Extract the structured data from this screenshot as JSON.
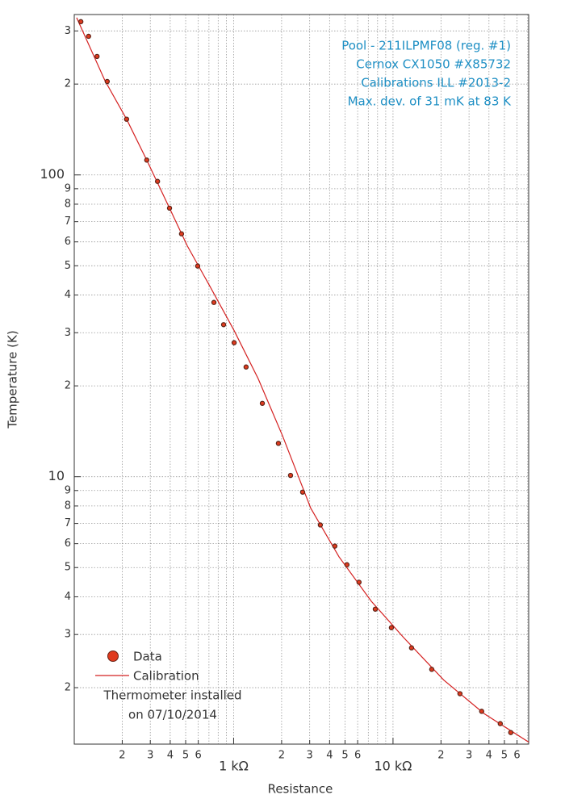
{
  "chart_data": {
    "type": "scatter",
    "xlabel": "Resistance",
    "ylabel": "Temperature (K)",
    "annotations": [
      "Pool - 211ILPMF08 (reg. #1)",
      "Cernox CX1050 #X85732",
      "Calibrations ILL #2013-2",
      "Max. dev. of 31 mK at 83 K"
    ],
    "legend_note": [
      "Thermometer installed",
      "on 07/10/2014"
    ],
    "log_x": true,
    "log_y": true,
    "grid": true,
    "legend": "lower left",
    "xlim": [
      100,
      71000
    ],
    "ylim": [
      1.3,
      340
    ],
    "xticks": [
      {
        "value": 200,
        "label": "2"
      },
      {
        "value": 300,
        "label": "3"
      },
      {
        "value": 400,
        "label": "4"
      },
      {
        "value": 500,
        "label": "5"
      },
      {
        "value": 600,
        "label": "6"
      },
      {
        "value": 1000,
        "label": "1 kΩ"
      },
      {
        "value": 2000,
        "label": "2"
      },
      {
        "value": 3000,
        "label": "3"
      },
      {
        "value": 4000,
        "label": "4"
      },
      {
        "value": 5000,
        "label": "5"
      },
      {
        "value": 6000,
        "label": "6"
      },
      {
        "value": 10000,
        "label": "10 kΩ"
      },
      {
        "value": 20000,
        "label": "2"
      },
      {
        "value": 30000,
        "label": "3"
      },
      {
        "value": 40000,
        "label": "4"
      },
      {
        "value": 50000,
        "label": "5"
      },
      {
        "value": 60000,
        "label": "6"
      }
    ],
    "xgrid_minor": [
      700,
      800,
      900,
      7000,
      8000,
      9000,
      70000
    ],
    "yticks": [
      2,
      3,
      4,
      5,
      6,
      7,
      8,
      9,
      10,
      {
        "value": 20,
        "label": "2"
      },
      {
        "value": 30,
        "label": "3"
      },
      {
        "value": 40,
        "label": "4"
      },
      {
        "value": 50,
        "label": "5"
      },
      {
        "value": 60,
        "label": "6"
      },
      {
        "value": 70,
        "label": "7"
      },
      {
        "value": 80,
        "label": "8"
      },
      {
        "value": 90,
        "label": "9"
      },
      100,
      {
        "value": 200,
        "label": "2"
      },
      {
        "value": 300,
        "label": "3"
      }
    ],
    "series": [
      {
        "name": "Data",
        "color": "#e03a1e",
        "x": [
          110,
          123,
          139,
          161,
          213,
          285,
          333,
          396,
          471,
          595,
          752,
          865,
          1007,
          1197,
          1514,
          1910,
          2275,
          2710,
          3500,
          4315,
          5140,
          6120,
          7740,
          9770,
          13070,
          17500,
          26300,
          36000,
          47100,
          54800
        ],
        "values": [
          322,
          288,
          247,
          204,
          153,
          112,
          95.2,
          77.6,
          63.8,
          49.9,
          37.8,
          31.9,
          27.8,
          23.1,
          17.5,
          12.9,
          10.1,
          8.89,
          6.92,
          5.89,
          5.11,
          4.47,
          3.64,
          3.16,
          2.71,
          2.3,
          1.91,
          1.67,
          1.52,
          1.42
        ]
      },
      {
        "name": "Calibration",
        "color": "#d42020",
        "x": [
          103.5,
          156,
          213,
          285,
          396,
          512,
          709,
          1007,
          1427,
          2023,
          3045,
          4580,
          7300,
          11600,
          20800,
          37300,
          71000
        ],
        "values": [
          332,
          205,
          153,
          112,
          77.6,
          58.2,
          42.8,
          30.5,
          21.1,
          13.7,
          7.87,
          5.43,
          3.87,
          2.94,
          2.12,
          1.64,
          1.32
        ]
      }
    ]
  }
}
